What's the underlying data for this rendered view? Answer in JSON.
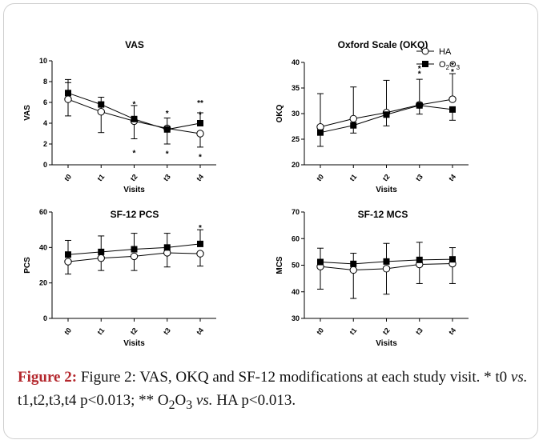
{
  "figure": {
    "legend": [
      {
        "marker": "open-circle",
        "label": "HA",
        "name_series": "HA"
      },
      {
        "marker": "filled-square",
        "label_main": "O",
        "sub1": "2",
        "mid": "O",
        "sub2": "3",
        "name_series": "O2O3"
      }
    ],
    "caption": {
      "label": "Figure 2:",
      "text_a": " Figure 2: VAS, OKQ and SF-12 modifications at each study visit. * t0 ",
      "vs1": "vs.",
      "text_b": " t1,t2,t3,t4 p<0.013; ** O",
      "s1": "2",
      "text_c": "O",
      "s2": "3",
      "text_d": " ",
      "vs2": "vs.",
      "text_e": " HA p<0.013."
    }
  },
  "chart_data": [
    {
      "type": "line",
      "title": "VAS",
      "xlabel": "Visits",
      "ylabel": "VAS",
      "categories": [
        "t0",
        "t1",
        "t2",
        "t3",
        "t4"
      ],
      "ylim": [
        0,
        10
      ],
      "yticks": [
        0,
        2,
        4,
        6,
        8,
        10
      ],
      "series": [
        {
          "name": "HA",
          "marker": "open-circle",
          "values": [
            6.3,
            5.1,
            4.2,
            3.5,
            3.0
          ],
          "err_low": [
            1.6,
            2.0,
            1.7,
            1.5,
            1.3
          ],
          "err_high": [
            1.6,
            0.9,
            0.0,
            0.0,
            0.0
          ]
        },
        {
          "name": "O2O3",
          "marker": "filled-square",
          "values": [
            6.9,
            5.8,
            4.4,
            3.4,
            4.0
          ],
          "err_low": [
            0.0,
            0.0,
            0.0,
            0.0,
            0.0
          ],
          "err_high": [
            1.3,
            0.7,
            1.3,
            1.1,
            1.0
          ]
        }
      ],
      "annotations": [
        {
          "x": "t2",
          "y": 5.9,
          "text": "*"
        },
        {
          "x": "t2",
          "y": 1.2,
          "text": "*"
        },
        {
          "x": "t3",
          "y": 5.0,
          "text": "*"
        },
        {
          "x": "t3",
          "y": 1.1,
          "text": "*"
        },
        {
          "x": "t4",
          "y": 6.0,
          "text": "**"
        },
        {
          "x": "t4",
          "y": 4.9,
          "text": "*"
        },
        {
          "x": "t4",
          "y": 0.8,
          "text": "*"
        }
      ]
    },
    {
      "type": "line",
      "title": "Oxford Scale (OKQ)",
      "xlabel": "Visits",
      "ylabel": "OKQ",
      "categories": [
        "t0",
        "t1",
        "t2",
        "t3",
        "t4"
      ],
      "ylim": [
        20,
        40
      ],
      "yticks": [
        20,
        25,
        30,
        35,
        40
      ],
      "series": [
        {
          "name": "HA",
          "marker": "open-circle",
          "values": [
            27.4,
            29.0,
            30.2,
            31.7,
            32.8
          ],
          "err_low": [
            0.0,
            0.0,
            2.6,
            1.8,
            0.0
          ],
          "err_high": [
            6.5,
            6.2,
            6.3,
            5.0,
            5.0
          ]
        },
        {
          "name": "O2O3",
          "marker": "filled-square",
          "values": [
            26.3,
            27.7,
            29.8,
            31.6,
            30.8
          ],
          "err_low": [
            2.7,
            1.5,
            0.0,
            0.0,
            2.1
          ],
          "err_high": [
            0.0,
            0.0,
            0.0,
            0.0,
            0.0
          ]
        }
      ],
      "annotations": [
        {
          "x": "t3",
          "y": 38.9,
          "text": "*"
        },
        {
          "x": "t3",
          "y": 37.9,
          "text": "*"
        },
        {
          "x": "t4",
          "y": 39.5,
          "text": "*"
        },
        {
          "x": "t4",
          "y": 38.3,
          "text": "*"
        }
      ]
    },
    {
      "type": "line",
      "title": "SF-12 PCS",
      "xlabel": "Visits",
      "ylabel": "PCS",
      "categories": [
        "t0",
        "t1",
        "t2",
        "t3",
        "t4"
      ],
      "ylim": [
        0,
        60
      ],
      "yticks": [
        0,
        20,
        40,
        60
      ],
      "series": [
        {
          "name": "HA",
          "marker": "open-circle",
          "values": [
            32,
            34,
            35,
            37,
            36.5
          ],
          "err_low": [
            7,
            7,
            8,
            8,
            7
          ],
          "err_high": [
            0,
            0,
            0,
            0,
            0
          ]
        },
        {
          "name": "O2O3",
          "marker": "filled-square",
          "values": [
            36,
            37.5,
            39,
            40,
            42
          ],
          "err_low": [
            0,
            0,
            0,
            0,
            0
          ],
          "err_high": [
            8,
            9,
            9,
            8,
            8
          ]
        }
      ],
      "annotations": [
        {
          "x": "t4",
          "y": 51.5,
          "text": "*"
        }
      ]
    },
    {
      "type": "line",
      "title": "SF-12 MCS",
      "xlabel": "Visits",
      "ylabel": "MCS",
      "categories": [
        "t0",
        "t1",
        "t2",
        "t3",
        "t4"
      ],
      "ylim": [
        30,
        70
      ],
      "yticks": [
        30,
        40,
        50,
        60,
        70
      ],
      "series": [
        {
          "name": "HA",
          "marker": "open-circle",
          "values": [
            49.5,
            48.2,
            48.7,
            50.3,
            50.6
          ],
          "err_low": [
            8.5,
            10.7,
            9.6,
            7.2,
            7.5
          ],
          "err_high": [
            0,
            0,
            0,
            0,
            0
          ]
        },
        {
          "name": "O2O3",
          "marker": "filled-square",
          "values": [
            51.2,
            50.5,
            51.4,
            52,
            52.2
          ],
          "err_low": [
            0,
            0,
            0,
            0,
            0
          ],
          "err_high": [
            5.2,
            4,
            6.8,
            6.6,
            4.4
          ]
        }
      ],
      "annotations": []
    }
  ]
}
